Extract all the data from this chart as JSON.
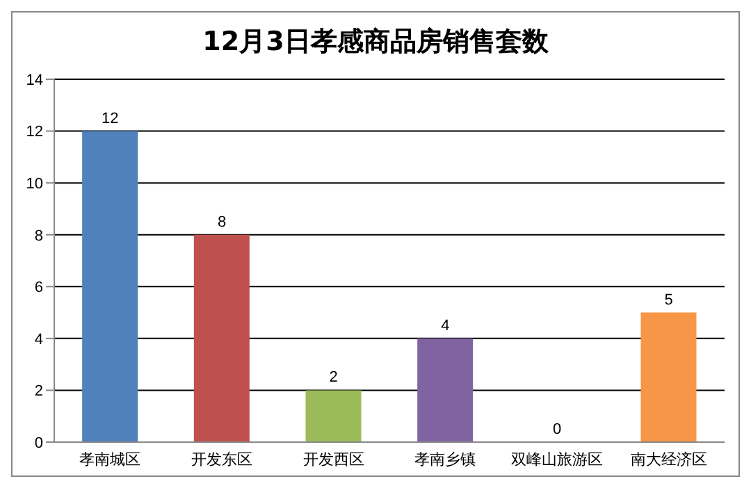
{
  "chart_data": {
    "type": "bar",
    "title": "12月3日孝感商品房销售套数",
    "categories": [
      "孝南城区",
      "开发东区",
      "开发西区",
      "孝南乡镇",
      "双峰山旅游区",
      "南大经济区"
    ],
    "values": [
      12,
      8,
      2,
      4,
      0,
      5
    ],
    "colors": [
      "#4f81bd",
      "#c0504d",
      "#9bbb59",
      "#8064a2",
      "#4bacc6",
      "#f79646"
    ],
    "ylim": [
      0,
      14
    ],
    "yticks": [
      0,
      2,
      4,
      6,
      8,
      10,
      12,
      14
    ],
    "grid": "y",
    "data_labels": true
  }
}
